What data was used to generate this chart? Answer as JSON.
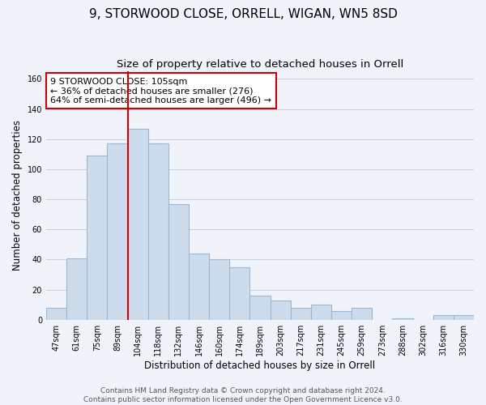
{
  "title": "9, STORWOOD CLOSE, ORRELL, WIGAN, WN5 8SD",
  "subtitle": "Size of property relative to detached houses in Orrell",
  "xlabel": "Distribution of detached houses by size in Orrell",
  "ylabel": "Number of detached properties",
  "bar_labels": [
    "47sqm",
    "61sqm",
    "75sqm",
    "89sqm",
    "104sqm",
    "118sqm",
    "132sqm",
    "146sqm",
    "160sqm",
    "174sqm",
    "189sqm",
    "203sqm",
    "217sqm",
    "231sqm",
    "245sqm",
    "259sqm",
    "273sqm",
    "288sqm",
    "302sqm",
    "316sqm",
    "330sqm"
  ],
  "bar_heights": [
    8,
    41,
    109,
    117,
    127,
    117,
    77,
    44,
    40,
    35,
    16,
    13,
    8,
    10,
    6,
    8,
    0,
    1,
    0,
    3,
    3
  ],
  "bar_color": "#cddcec",
  "bar_edge_color": "#9ab8d4",
  "vline_index": 4,
  "vline_color": "#cc0000",
  "annotation_text": "9 STORWOOD CLOSE: 105sqm\n← 36% of detached houses are smaller (276)\n64% of semi-detached houses are larger (496) →",
  "annotation_box_color": "#ffffff",
  "annotation_box_edge": "#cc0000",
  "ylim": [
    0,
    165
  ],
  "yticks": [
    0,
    20,
    40,
    60,
    80,
    100,
    120,
    140,
    160
  ],
  "footer1": "Contains HM Land Registry data © Crown copyright and database right 2024.",
  "footer2": "Contains public sector information licensed under the Open Government Licence v3.0.",
  "bg_color": "#f0f4fa",
  "grid_color": "#c8d0dc",
  "title_fontsize": 11,
  "subtitle_fontsize": 9.5,
  "axis_label_fontsize": 8.5,
  "tick_fontsize": 7,
  "annotation_fontsize": 8,
  "footer_fontsize": 6.5
}
